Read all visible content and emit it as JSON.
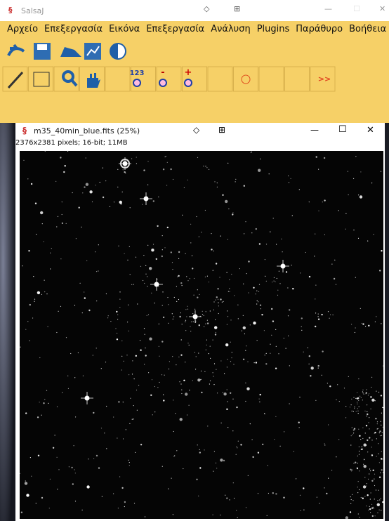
{
  "app": {
    "title": "SalsaJ",
    "menu": [
      "Αρχείο",
      "Επεξεργασία",
      "Εικόνα",
      "Επεξεργασία",
      "Ανάλυση",
      "Plugins",
      "Παράθυρο",
      "Βοήθεια"
    ],
    "tool_labels": [
      "123",
      "-",
      "+",
      ">>"
    ]
  },
  "image_window": {
    "title": "m35_40min_blue.fits (25%)",
    "info": "2376x2381 pixels; 16-bit; 11MB"
  }
}
